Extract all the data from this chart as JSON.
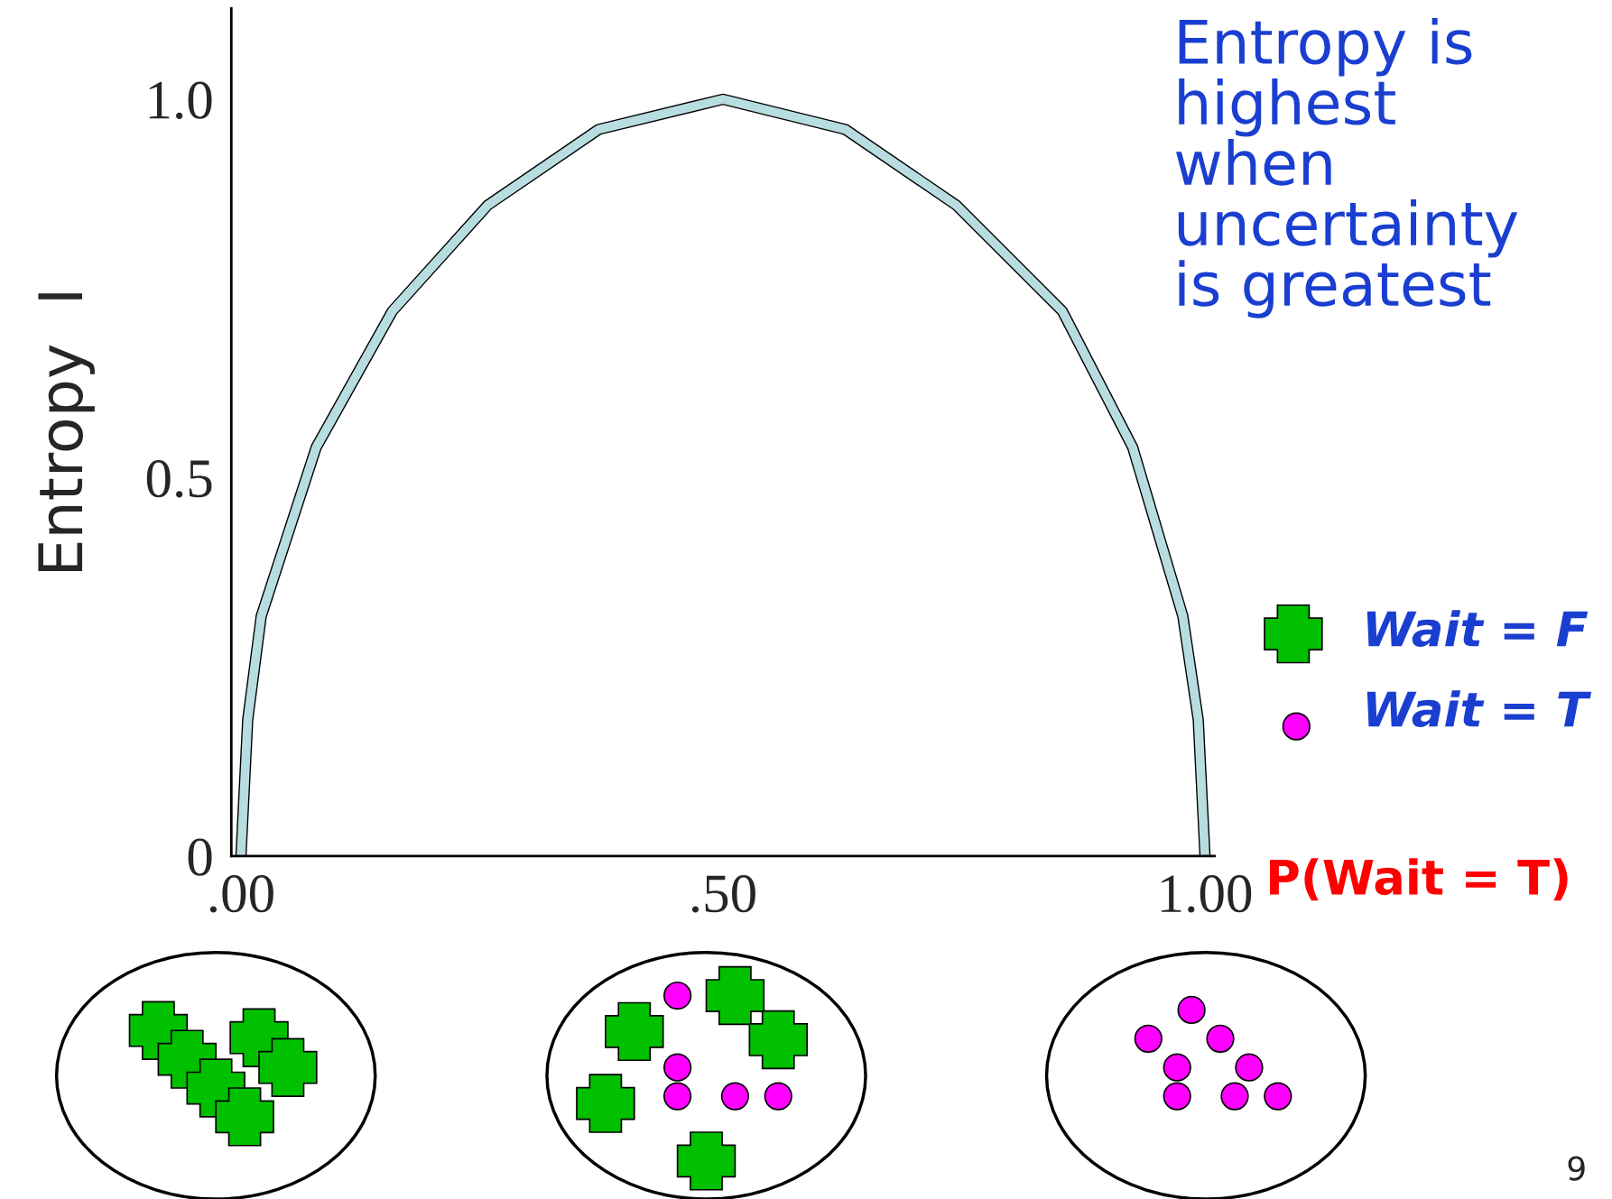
{
  "chart_data": {
    "type": "line",
    "x": [
      0,
      0.007,
      0.021,
      0.078,
      0.157,
      0.256,
      0.371,
      0.5,
      0.627,
      0.742,
      0.852,
      0.925,
      0.977,
      0.993,
      1.0
    ],
    "series": [
      {
        "color": "#b8dde0",
        "values": [
          0,
          0.18,
          0.317,
          0.54,
          0.72,
          0.86,
          0.96,
          1.0,
          0.96,
          0.86,
          0.72,
          0.54,
          0.317,
          0.18,
          0
        ]
      }
    ],
    "xlim": [
      -0.01,
      1.01
    ],
    "ylim": [
      0,
      1.12
    ],
    "xticks": [
      {
        "value": 0,
        "label": ".00"
      },
      {
        "value": 0.5,
        "label": ".50"
      },
      {
        "value": 1,
        "label": "1.00"
      }
    ],
    "yticks": [
      {
        "value": 0,
        "label": "0"
      },
      {
        "value": 0.5,
        "label": "0.5"
      },
      {
        "value": 1.0,
        "label": "1.0"
      }
    ],
    "xlabel": "P(Wait = T)",
    "ylabel": "Entropy  I",
    "marker": "none",
    "line_style": "solid",
    "grid": false,
    "legend": false,
    "annotations": [
      "Entropy is\nhighest\nwhen\nuncertainty\nis greatest",
      "Wait = F",
      "Wait = T",
      "9"
    ]
  }
}
